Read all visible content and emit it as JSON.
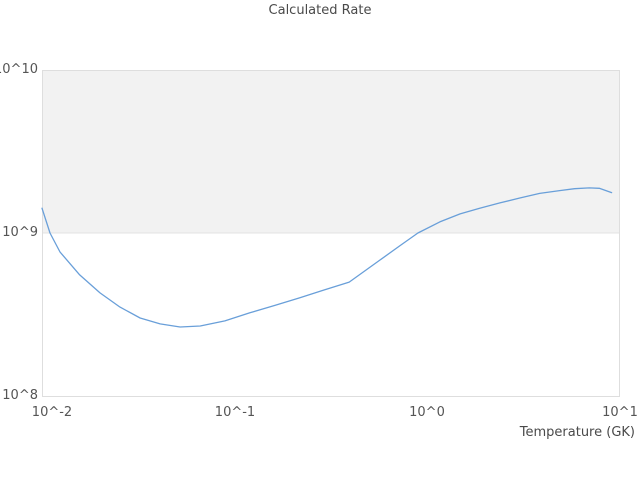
{
  "chart_data": {
    "type": "line",
    "title": "Calculated Rate",
    "xlabel": "Temperature (GK)",
    "ylabel": "",
    "xscale": "log",
    "yscale": "log",
    "xlim": [
      0.01,
      10
    ],
    "ylim": [
      100000000.0,
      10000000000.0
    ],
    "x_tick_labels": [
      "10^-2",
      "10^-1",
      "10^0",
      "10^1"
    ],
    "y_tick_labels": [
      "10^10",
      "10^9",
      "10^8"
    ],
    "grid": "horizontal-decade-lines-only",
    "legend": "none",
    "shaded_band_y": [
      1000000000.0,
      10000000000.0
    ],
    "series": [
      {
        "name": "calculated-rate",
        "x": [
          0.01,
          0.011,
          0.0124,
          0.0157,
          0.02,
          0.0254,
          0.0323,
          0.041,
          0.0521,
          0.0662,
          0.089,
          0.12,
          0.161,
          0.217,
          0.291,
          0.393,
          0.568,
          0.719,
          0.893,
          1.16,
          1.48,
          1.87,
          2.38,
          3.02,
          3.83,
          4.86,
          5.81,
          6.93,
          7.81,
          9.05
        ],
        "values": [
          1420000000.0,
          1000000000.0,
          765000000.0,
          553000000.0,
          429000000.0,
          351000000.0,
          301000000.0,
          277000000.0,
          265000000.0,
          269000000.0,
          289000000.0,
          324000000.0,
          359000000.0,
          400000000.0,
          447000000.0,
          500000000.0,
          683000000.0,
          833000000.0,
          1000000000.0,
          1170000000.0,
          1310000000.0,
          1420000000.0,
          1530000000.0,
          1640000000.0,
          1750000000.0,
          1820000000.0,
          1870000000.0,
          1890000000.0,
          1880000000.0,
          1770000000.0
        ]
      }
    ],
    "colors": {
      "line": "#699fd9",
      "band_fill": "#f2f2f2",
      "plot_border": "#dedede",
      "gridline": "#e3e3e3",
      "title_text": "#4a4a4a",
      "tick_text": "#555555"
    }
  }
}
